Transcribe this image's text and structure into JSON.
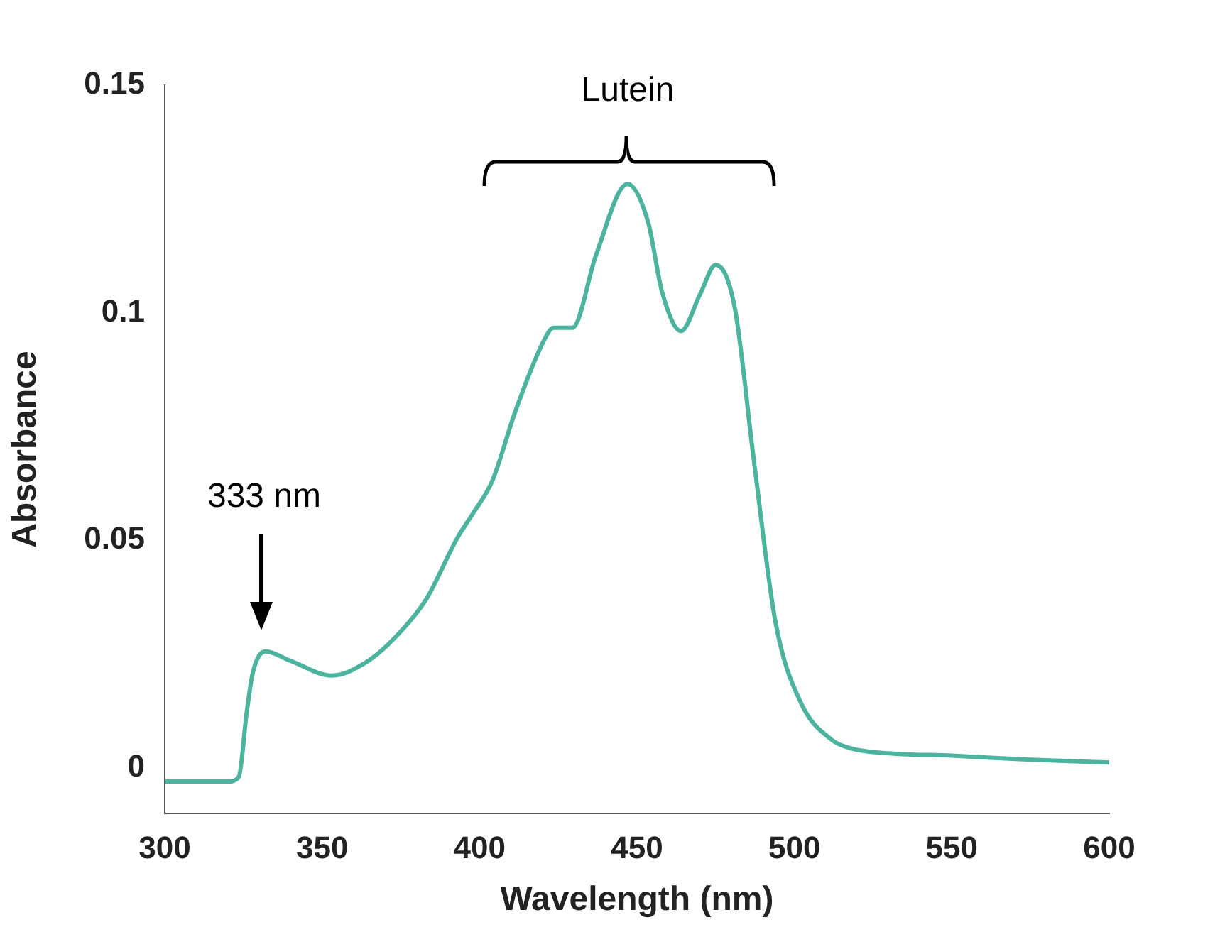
{
  "chart_data": {
    "type": "line",
    "xlabel": "Wavelength (nm)",
    "ylabel": "Absorbance",
    "x": [
      300,
      310,
      320,
      323.5,
      326,
      328,
      332,
      340,
      353,
      365,
      375,
      383,
      393,
      398,
      404,
      411.5,
      420.5,
      423.5,
      429.5,
      437,
      447,
      453.5,
      458,
      464,
      470,
      475,
      481,
      487,
      494,
      502,
      512,
      518,
      530,
      550,
      575,
      600
    ],
    "series": [
      {
        "color": "#4bb39e",
        "values": [
          -0.003,
          -0.003,
          -0.003,
          -0.002,
          0.012,
          0.021,
          0.0256,
          0.0235,
          0.0203,
          0.0237,
          0.03,
          0.037,
          0.0506,
          0.056,
          0.063,
          0.0786,
          0.094,
          0.0967,
          0.0967,
          0.1127,
          0.1283,
          0.12,
          0.1045,
          0.096,
          0.104,
          0.1105,
          0.1013,
          0.0683,
          0.032,
          0.0144,
          0.0061,
          0.0043,
          0.0032,
          0.0027,
          0.0018,
          0.0012
        ]
      }
    ],
    "xlim": [
      300,
      600
    ],
    "xticks": [
      300,
      350,
      400,
      450,
      500,
      550,
      600
    ],
    "ylim": [
      -0.01,
      0.15
    ],
    "yticks": [
      0,
      0.05,
      0.1,
      0.15
    ],
    "grid": false,
    "legend": false,
    "marker": "none",
    "line_style": "solid",
    "annotations": [
      "333 nm",
      "Lutein"
    ]
  }
}
